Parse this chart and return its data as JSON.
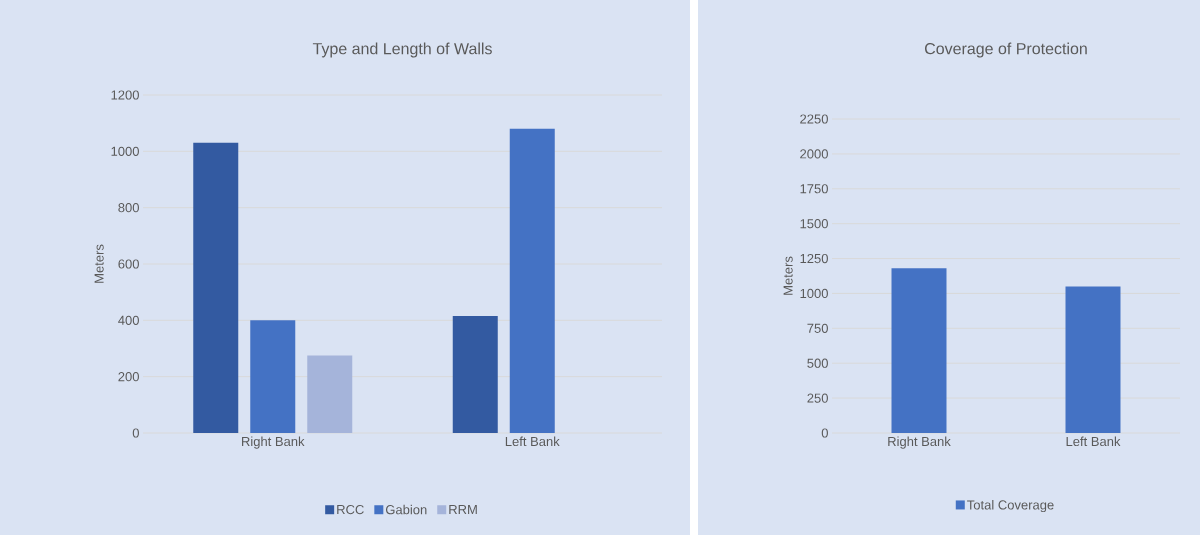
{
  "chart_data": [
    {
      "type": "bar",
      "title": "Type and Length of Walls",
      "ylabel": "Meters",
      "categories": [
        "Right Bank",
        "Left Bank"
      ],
      "series": [
        {
          "name": "RCC",
          "color": "#335aa1",
          "values": [
            1030,
            415
          ]
        },
        {
          "name": "Gabion",
          "color": "#4472c4",
          "values": [
            400,
            1080
          ]
        },
        {
          "name": "RRM",
          "color": "#a5b4da",
          "values": [
            275,
            null
          ]
        }
      ],
      "ylim": [
        0,
        1200
      ],
      "yticks": [
        0,
        200,
        400,
        600,
        800,
        1000,
        1200
      ],
      "grid": "y",
      "legend": "bottom"
    },
    {
      "type": "bar",
      "title": "Coverage of Protection",
      "ylabel": "Meters",
      "categories": [
        "Right Bank",
        "Left Bank"
      ],
      "series": [
        {
          "name": "Total Coverage",
          "color": "#4472c4",
          "values": [
            1180,
            1050
          ]
        }
      ],
      "ylim": [
        0,
        2250
      ],
      "yticks": [
        0,
        250,
        500,
        750,
        1000,
        1250,
        1500,
        1750,
        2000,
        2250
      ],
      "grid": "y",
      "legend": "bottom"
    }
  ]
}
